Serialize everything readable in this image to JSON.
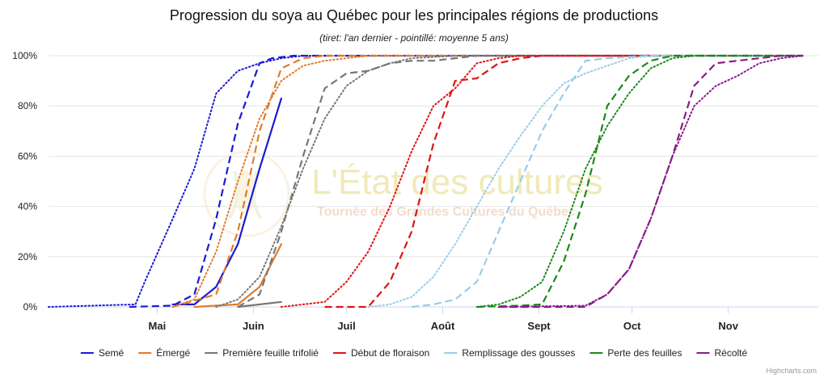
{
  "watermark": {
    "title": "L'État des cultures",
    "subtitle": "Tournée des Grandes Cultures du Québec"
  },
  "credits": "Highcharts.com",
  "chart_data": {
    "type": "line",
    "title": "Progression du soya au Québec pour les principales régions de productions",
    "subtitle": "(tiret: l'an dernier - pointillé: moyenne 5 ans)",
    "xlabel": "",
    "ylabel": "",
    "x_unit": "day of year",
    "x_range": [
      "Mar 27",
      "Nov 30"
    ],
    "x_ticks": [
      {
        "label": "Mai",
        "x": "May 1"
      },
      {
        "label": "Juin",
        "x": "Jun 1"
      },
      {
        "label": "Juil",
        "x": "Jul 1"
      },
      {
        "label": "Août",
        "x": "Aug 1"
      },
      {
        "label": "Sept",
        "x": "Sep 1"
      },
      {
        "label": "Oct",
        "x": "Oct 1"
      },
      {
        "label": "Nov",
        "x": "Nov 1"
      }
    ],
    "y_ticks": [
      "0%",
      "20%",
      "40%",
      "60%",
      "80%",
      "100%"
    ],
    "ylim": [
      0,
      100
    ],
    "grid": true,
    "legend_position": "bottom",
    "stages": [
      {
        "name": "Semé",
        "color": "#1a1ad6",
        "current": [
          [
            "May 6",
            1
          ],
          [
            "May 13",
            1
          ],
          [
            "May 20",
            8
          ],
          [
            "May 27",
            25
          ],
          [
            "Jun 3",
            55
          ],
          [
            "Jun 10",
            83
          ]
        ],
        "last_year": [
          [
            "Apr 22",
            0
          ],
          [
            "May 6",
            0.5
          ],
          [
            "May 13",
            5
          ],
          [
            "May 20",
            35
          ],
          [
            "May 27",
            73
          ],
          [
            "Jun 3",
            97
          ],
          [
            "Jun 7",
            99
          ],
          [
            "Jun 14",
            100
          ],
          [
            "Nov 25",
            100
          ]
        ],
        "avg5": [
          [
            "Mar 27",
            0
          ],
          [
            "Apr 24",
            1
          ],
          [
            "Apr 27",
            10
          ],
          [
            "May 6",
            35
          ],
          [
            "May 13",
            55
          ],
          [
            "May 20",
            85
          ],
          [
            "May 27",
            94
          ],
          [
            "Jun 3",
            97
          ],
          [
            "Jun 10",
            99
          ],
          [
            "Jun 17",
            100
          ],
          [
            "Nov 25",
            100
          ]
        ]
      },
      {
        "name": "Émergé",
        "color": "#e07b2e",
        "current": [
          [
            "May 13",
            0
          ],
          [
            "May 20",
            0.5
          ],
          [
            "May 27",
            1
          ],
          [
            "Jun 3",
            8
          ],
          [
            "Jun 10",
            25
          ]
        ],
        "last_year": [
          [
            "May 6",
            0
          ],
          [
            "May 20",
            5
          ],
          [
            "May 27",
            30
          ],
          [
            "Jun 3",
            70
          ],
          [
            "Jun 10",
            95
          ],
          [
            "Jun 17",
            99
          ],
          [
            "Jun 24",
            100
          ],
          [
            "Nov 25",
            100
          ]
        ],
        "avg5": [
          [
            "May 6",
            0
          ],
          [
            "May 13",
            3
          ],
          [
            "May 20",
            22
          ],
          [
            "May 27",
            50
          ],
          [
            "Jun 3",
            75
          ],
          [
            "Jun 10",
            90
          ],
          [
            "Jun 17",
            96
          ],
          [
            "Jun 24",
            98
          ],
          [
            "Jul 1",
            99
          ],
          [
            "Jul 8",
            100
          ],
          [
            "Nov 25",
            100
          ]
        ]
      },
      {
        "name": "Première feuille trifolié",
        "color": "#777777",
        "current": [
          [
            "May 27",
            0
          ],
          [
            "Jun 3",
            1
          ],
          [
            "Jun 10",
            2
          ]
        ],
        "last_year": [
          [
            "May 27",
            0
          ],
          [
            "Jun 3",
            5
          ],
          [
            "Jun 10",
            30
          ],
          [
            "Jun 17",
            60
          ],
          [
            "Jun 24",
            87
          ],
          [
            "Jul 1",
            93
          ],
          [
            "Jul 8",
            94
          ],
          [
            "Jul 15",
            97
          ],
          [
            "Jul 22",
            98
          ],
          [
            "Jul 29",
            98
          ],
          [
            "Aug 5",
            99
          ],
          [
            "Aug 12",
            100
          ],
          [
            "Nov 25",
            100
          ]
        ],
        "avg5": [
          [
            "May 20",
            0
          ],
          [
            "May 27",
            3
          ],
          [
            "Jun 3",
            12
          ],
          [
            "Jun 10",
            32
          ],
          [
            "Jun 17",
            55
          ],
          [
            "Jun 24",
            75
          ],
          [
            "Jul 1",
            88
          ],
          [
            "Jul 8",
            94
          ],
          [
            "Jul 15",
            97
          ],
          [
            "Jul 22",
            99
          ],
          [
            "Jul 29",
            99.5
          ],
          [
            "Aug 5",
            100
          ],
          [
            "Nov 25",
            100
          ]
        ]
      },
      {
        "name": "Début de floraison",
        "color": "#e01414",
        "current": [],
        "last_year": [
          [
            "Jun 24",
            0
          ],
          [
            "Jul 8",
            0
          ],
          [
            "Jul 15",
            10
          ],
          [
            "Jul 22",
            30
          ],
          [
            "Jul 29",
            65
          ],
          [
            "Aug 5",
            90
          ],
          [
            "Aug 12",
            91
          ],
          [
            "Aug 19",
            97
          ],
          [
            "Aug 26",
            99
          ],
          [
            "Sep 2",
            100
          ],
          [
            "Oct 10",
            100
          ]
        ],
        "avg5": [
          [
            "Jun 10",
            0
          ],
          [
            "Jun 24",
            2
          ],
          [
            "Jul 1",
            10
          ],
          [
            "Jul 8",
            22
          ],
          [
            "Jul 15",
            40
          ],
          [
            "Jul 22",
            62
          ],
          [
            "Jul 29",
            80
          ],
          [
            "Aug 5",
            87
          ],
          [
            "Aug 12",
            97
          ],
          [
            "Aug 19",
            99
          ],
          [
            "Aug 26",
            100
          ],
          [
            "Nov 25",
            100
          ]
        ]
      },
      {
        "name": "Remplissage des gousses",
        "color": "#99cce6",
        "current": [],
        "last_year": [
          [
            "Jul 22",
            0
          ],
          [
            "Jul 29",
            1
          ],
          [
            "Aug 5",
            3
          ],
          [
            "Aug 12",
            10
          ],
          [
            "Aug 19",
            30
          ],
          [
            "Aug 26",
            50
          ],
          [
            "Sep 2",
            70
          ],
          [
            "Sep 9",
            85
          ],
          [
            "Sep 16",
            98
          ],
          [
            "Sep 23",
            99
          ],
          [
            "Oct 7",
            100
          ],
          [
            "Nov 25",
            100
          ]
        ],
        "avg5": [
          [
            "Jul 8",
            0
          ],
          [
            "Jul 15",
            1
          ],
          [
            "Jul 22",
            4
          ],
          [
            "Jul 29",
            12
          ],
          [
            "Aug 5",
            25
          ],
          [
            "Aug 12",
            40
          ],
          [
            "Aug 19",
            55
          ],
          [
            "Aug 26",
            68
          ],
          [
            "Sep 2",
            80
          ],
          [
            "Sep 9",
            89
          ],
          [
            "Sep 16",
            93
          ],
          [
            "Sep 23",
            96
          ],
          [
            "Sep 30",
            99
          ],
          [
            "Oct 7",
            100
          ],
          [
            "Nov 25",
            100
          ]
        ]
      },
      {
        "name": "Perte des feuilles",
        "color": "#1a8a1a",
        "current": [],
        "last_year": [
          [
            "Aug 12",
            0
          ],
          [
            "Aug 26",
            0.5
          ],
          [
            "Sep 2",
            1
          ],
          [
            "Sep 9",
            18
          ],
          [
            "Sep 16",
            45
          ],
          [
            "Sep 23",
            80
          ],
          [
            "Sep 30",
            92
          ],
          [
            "Oct 7",
            98
          ],
          [
            "Oct 14",
            100
          ],
          [
            "Nov 25",
            100
          ]
        ],
        "avg5": [
          [
            "Aug 12",
            0
          ],
          [
            "Aug 19",
            1
          ],
          [
            "Aug 26",
            4
          ],
          [
            "Sep 2",
            10
          ],
          [
            "Sep 9",
            30
          ],
          [
            "Sep 16",
            55
          ],
          [
            "Sep 23",
            72
          ],
          [
            "Sep 30",
            85
          ],
          [
            "Oct 7",
            95
          ],
          [
            "Oct 14",
            99
          ],
          [
            "Oct 21",
            100
          ],
          [
            "Nov 25",
            100
          ]
        ]
      },
      {
        "name": "Récolté",
        "color": "#8a1a8a",
        "current": [],
        "last_year": [
          [
            "Aug 19",
            0
          ],
          [
            "Sep 16",
            0
          ],
          [
            "Sep 23",
            5
          ],
          [
            "Sep 30",
            15
          ],
          [
            "Oct 7",
            35
          ],
          [
            "Oct 14",
            60
          ],
          [
            "Oct 21",
            88
          ],
          [
            "Oct 28",
            97
          ],
          [
            "Nov 4",
            98
          ],
          [
            "Nov 11",
            99
          ],
          [
            "Nov 18",
            100
          ],
          [
            "Nov 25",
            100
          ]
        ],
        "avg5": [
          [
            "Aug 19",
            0
          ],
          [
            "Sep 16",
            0.5
          ],
          [
            "Sep 23",
            5
          ],
          [
            "Sep 30",
            15
          ],
          [
            "Oct 7",
            35
          ],
          [
            "Oct 14",
            60
          ],
          [
            "Oct 21",
            80
          ],
          [
            "Oct 28",
            88
          ],
          [
            "Nov 4",
            92
          ],
          [
            "Nov 11",
            97
          ],
          [
            "Nov 18",
            99
          ],
          [
            "Nov 25",
            100
          ]
        ]
      }
    ]
  }
}
